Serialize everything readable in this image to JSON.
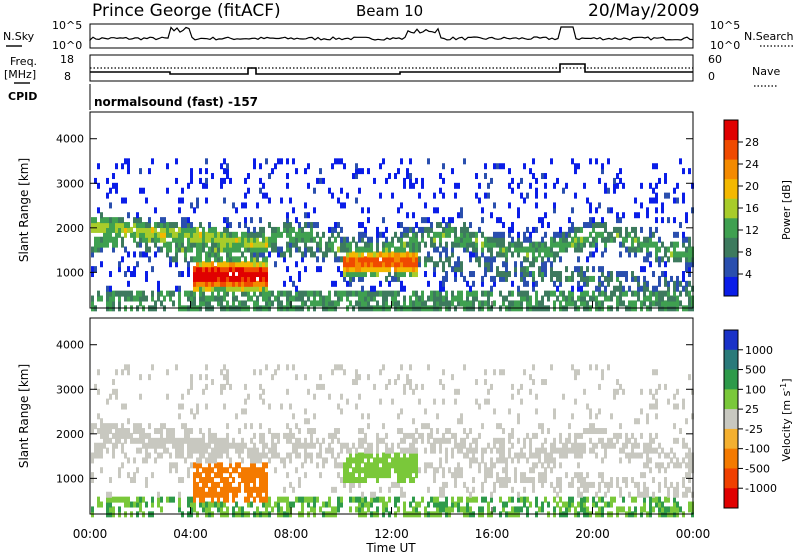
{
  "header": {
    "title": "Prince George (fitACF)",
    "beam": "Beam 10",
    "date": "20/May/2009"
  },
  "top_panel": {
    "left_label": "N.Sky",
    "left_ticks": [
      "10^5",
      "10^0"
    ],
    "right_ticks": [
      "10^5",
      "10^0"
    ],
    "right_label": "N.Search"
  },
  "freq_panel": {
    "left_label_1": "Freq.",
    "left_label_2": "[MHz]",
    "left_ticks": [
      "18",
      "8"
    ],
    "right_ticks": [
      "60",
      "0"
    ],
    "right_label": "Nave"
  },
  "cpid": {
    "label": "CPID",
    "value": "normalsound (fast) -157"
  },
  "colors": {
    "power_scale": [
      "#0a1de8",
      "#2a4fae",
      "#3d7a5e",
      "#3fa050",
      "#a8cc2a",
      "#f3b800",
      "#f48a00",
      "#f04a00",
      "#e00000"
    ],
    "velocity_scale": [
      "#1a32c8",
      "#2a7a7a",
      "#2e9a4a",
      "#7ac83a",
      "#c8c8c0",
      "#f4b030",
      "#f47a00",
      "#f04000",
      "#e00000"
    ]
  },
  "chart_data": [
    {
      "type": "heatmap",
      "name": "power",
      "ylabel": "Slant Range [km]",
      "yticks": [
        "1000",
        "2000",
        "3000",
        "4000"
      ],
      "ylim": [
        200,
        4600
      ],
      "xlim": [
        "00:00",
        "24:00"
      ],
      "colorbar_label": "Power [dB]",
      "colorbar_ticks": [
        "4",
        "8",
        "12",
        "16",
        "20",
        "24",
        "28"
      ],
      "colorbar_range": [
        0,
        30
      ]
    },
    {
      "type": "heatmap",
      "name": "velocity",
      "ylabel": "Slant Range [km]",
      "yticks": [
        "1000",
        "2000",
        "3000",
        "4000"
      ],
      "ylim": [
        200,
        4600
      ],
      "xlim": [
        "00:00",
        "24:00"
      ],
      "xlabel": "Time UT",
      "xticks": [
        "00:00",
        "04:00",
        "08:00",
        "12:00",
        "16:00",
        "20:00",
        "00:00"
      ],
      "colorbar_label": "Velocity [m s",
      "colorbar_label_sup": "-1",
      "colorbar_label_end": "]",
      "colorbar_ticks": [
        "1000",
        "500",
        "100",
        "25",
        "-25",
        "-100",
        "-500",
        "-1000"
      ]
    }
  ]
}
